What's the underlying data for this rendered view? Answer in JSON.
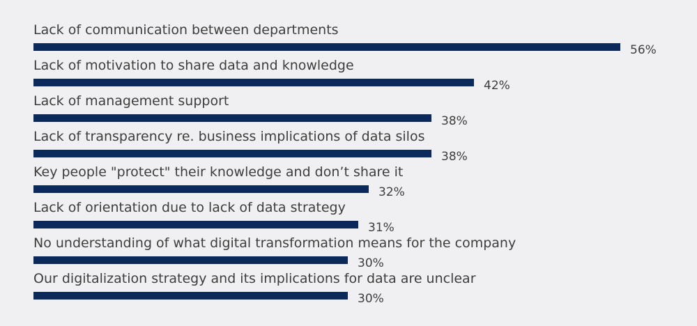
{
  "chart_data": {
    "type": "bar",
    "orientation": "horizontal",
    "categories": [
      "Lack of communication between departments",
      "Lack of motivation to share data and knowledge",
      "Lack of management support",
      "Lack of transparency re. business implications of data silos",
      "Key people \"protect\" their knowledge and don’t share it",
      "Lack of orientation due to lack of data strategy",
      "No understanding of what digital transformation means for the company",
      "Our digitalization strategy and its implications for data are unclear"
    ],
    "values": [
      56,
      42,
      38,
      38,
      32,
      31,
      30,
      30
    ],
    "value_labels": [
      "56%",
      "42%",
      "38%",
      "38%",
      "32%",
      "31%",
      "30%",
      "30%"
    ],
    "unit": "%",
    "xlim": [
      0,
      56
    ],
    "grid": false,
    "legend": "none",
    "bar_color": "#0b2a5b",
    "text_color": "#3d3d3d",
    "background_color": "#f0f0f2"
  }
}
